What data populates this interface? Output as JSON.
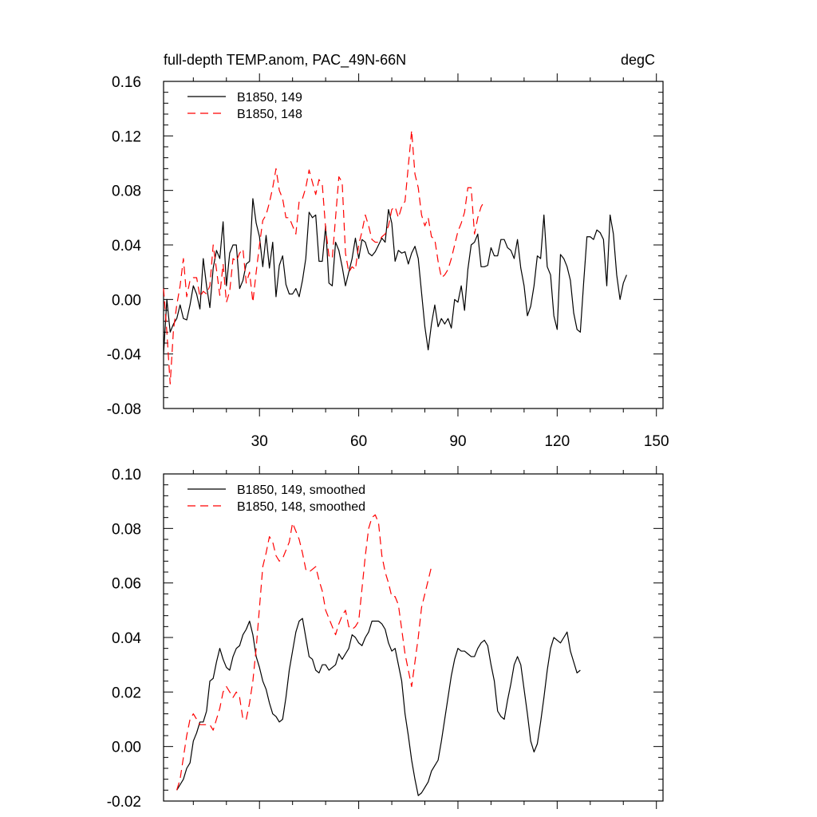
{
  "chart_data": [
    {
      "type": "line",
      "title_left": "full-depth TEMP.anom, PAC_49N-66N",
      "title_right": "degC",
      "xlabel": "",
      "ylabel": "",
      "xlim": [
        1,
        152
      ],
      "ylim": [
        -0.08,
        0.16
      ],
      "xticks": [
        30,
        60,
        90,
        120,
        150
      ],
      "yticks": [
        -0.08,
        -0.04,
        0.0,
        0.04,
        0.08,
        0.12,
        0.16
      ],
      "ytick_labels": [
        "-0.08",
        "-0.04",
        "0.00",
        "0.04",
        "0.08",
        "0.12",
        "0.16"
      ],
      "show_xtick_labels": true,
      "legend": "top-left",
      "series": [
        {
          "name": "B1850, 149",
          "color": "#000000",
          "dash": "solid",
          "x_start": 1,
          "values": [
            -0.04,
            0.0,
            -0.024,
            -0.018,
            -0.014,
            -0.004,
            -0.014,
            -0.015,
            -0.004,
            0.01,
            0.004,
            -0.007,
            0.03,
            0.01,
            -0.006,
            0.023,
            0.036,
            0.03,
            0.057,
            0.01,
            0.034,
            0.04,
            0.04,
            0.008,
            0.014,
            0.026,
            0.028,
            0.074,
            0.056,
            0.046,
            0.024,
            0.047,
            0.023,
            0.042,
            0.002,
            0.025,
            0.032,
            0.011,
            0.004,
            0.004,
            0.008,
            0.002,
            0.014,
            0.03,
            0.064,
            0.06,
            0.062,
            0.028,
            0.028,
            0.054,
            0.012,
            0.01,
            0.042,
            0.036,
            0.024,
            0.01,
            0.02,
            0.03,
            0.045,
            0.03,
            0.044,
            0.042,
            0.034,
            0.032,
            0.035,
            0.04,
            0.045,
            0.042,
            0.066,
            0.056,
            0.028,
            0.036,
            0.034,
            0.035,
            0.026,
            0.034,
            0.039,
            0.03,
            0.005,
            -0.02,
            -0.037,
            -0.018,
            -0.004,
            -0.02,
            -0.014,
            -0.018,
            -0.014,
            -0.021,
            0.0,
            -0.002,
            0.01,
            -0.008,
            0.022,
            0.04,
            0.042,
            0.048,
            0.024,
            0.024,
            0.025,
            0.038,
            0.032,
            0.032,
            0.044,
            0.044,
            0.038,
            0.036,
            0.03,
            0.044,
            0.023,
            0.01,
            -0.012,
            -0.005,
            0.01,
            0.032,
            0.03,
            0.062,
            0.024,
            0.018,
            -0.012,
            -0.022,
            0.033,
            0.03,
            0.024,
            0.014,
            -0.01,
            -0.022,
            -0.024,
            0.012,
            0.046,
            0.046,
            0.044,
            0.051,
            0.049,
            0.044,
            0.01,
            0.062,
            0.048,
            0.018,
            0.0,
            0.012,
            0.018
          ]
        },
        {
          "name": "B1850, 148",
          "color": "#ff0000",
          "dash": "10,6",
          "x_start": 1,
          "values": [
            0.008,
            -0.024,
            -0.062,
            -0.022,
            -0.004,
            0.01,
            0.03,
            0.002,
            0.014,
            0.016,
            0.016,
            0.002,
            0.006,
            0.004,
            0.01,
            0.04,
            0.022,
            0.003,
            0.026,
            -0.002,
            0.006,
            0.03,
            0.028,
            0.034,
            0.037,
            0.012,
            0.02,
            -0.002,
            0.02,
            0.04,
            0.058,
            0.062,
            0.071,
            0.082,
            0.096,
            0.08,
            0.074,
            0.06,
            0.06,
            0.054,
            0.048,
            0.072,
            0.074,
            0.082,
            0.095,
            0.086,
            0.077,
            0.088,
            0.084,
            0.052,
            0.032,
            0.03,
            0.06,
            0.09,
            0.086,
            0.034,
            0.02,
            0.024,
            0.022,
            0.04,
            0.05,
            0.062,
            0.054,
            0.044,
            0.042,
            0.042,
            0.046,
            0.048,
            0.054,
            0.066,
            0.068,
            0.06,
            0.068,
            0.072,
            0.098,
            0.124,
            0.092,
            0.082,
            0.062,
            0.054,
            0.06,
            0.046,
            0.044,
            0.028,
            0.016,
            0.018,
            0.022,
            0.03,
            0.04,
            0.05,
            0.056,
            0.064,
            0.082,
            0.082,
            0.048,
            0.06,
            0.068,
            0.072
          ]
        }
      ]
    },
    {
      "type": "line",
      "title_left": "",
      "title_right": "",
      "xlabel": "",
      "ylabel": "",
      "xlim": [
        1,
        152
      ],
      "ylim": [
        -0.02,
        0.1
      ],
      "xticks": [
        30,
        60,
        90,
        120,
        150
      ],
      "yticks": [
        -0.02,
        0.0,
        0.02,
        0.04,
        0.06,
        0.08,
        0.1
      ],
      "ytick_labels": [
        "-0.02",
        "0.00",
        "0.02",
        "0.04",
        "0.06",
        "0.08",
        "0.10"
      ],
      "show_xtick_labels": false,
      "legend": "top-left",
      "series": [
        {
          "name": "B1850, 149, smoothed",
          "color": "#000000",
          "dash": "solid",
          "x_start": 5,
          "values": [
            -0.016,
            -0.014,
            -0.012,
            -0.008,
            -0.006,
            0.002,
            0.005,
            0.009,
            0.009,
            0.013,
            0.024,
            0.025,
            0.031,
            0.036,
            0.032,
            0.029,
            0.028,
            0.033,
            0.036,
            0.037,
            0.041,
            0.043,
            0.046,
            0.041,
            0.033,
            0.029,
            0.024,
            0.021,
            0.016,
            0.012,
            0.011,
            0.009,
            0.01,
            0.018,
            0.028,
            0.035,
            0.042,
            0.046,
            0.047,
            0.04,
            0.033,
            0.032,
            0.028,
            0.027,
            0.03,
            0.03,
            0.028,
            0.029,
            0.03,
            0.034,
            0.032,
            0.034,
            0.036,
            0.041,
            0.04,
            0.038,
            0.037,
            0.04,
            0.042,
            0.046,
            0.046,
            0.046,
            0.045,
            0.043,
            0.038,
            0.035,
            0.036,
            0.03,
            0.024,
            0.012,
            0.004,
            -0.005,
            -0.012,
            -0.018,
            -0.017,
            -0.015,
            -0.013,
            -0.009,
            -0.007,
            -0.005,
            0.002,
            0.01,
            0.018,
            0.026,
            0.032,
            0.036,
            0.035,
            0.035,
            0.034,
            0.033,
            0.033,
            0.036,
            0.038,
            0.039,
            0.037,
            0.03,
            0.024,
            0.013,
            0.011,
            0.01,
            0.017,
            0.023,
            0.03,
            0.033,
            0.03,
            0.021,
            0.012,
            0.002,
            -0.002,
            0.001,
            0.009,
            0.018,
            0.028,
            0.036,
            0.04,
            0.039,
            0.038,
            0.04,
            0.042,
            0.035,
            0.031,
            0.027,
            0.028
          ]
        },
        {
          "name": "B1850, 148, smoothed",
          "color": "#ff0000",
          "dash": "10,6",
          "x_start": 5,
          "values": [
            -0.016,
            -0.012,
            -0.004,
            0.004,
            0.01,
            0.012,
            0.01,
            0.008,
            0.008,
            0.008,
            0.008,
            0.006,
            0.01,
            0.014,
            0.02,
            0.022,
            0.02,
            0.018,
            0.02,
            0.018,
            0.01,
            0.01,
            0.016,
            0.024,
            0.036,
            0.051,
            0.066,
            0.071,
            0.077,
            0.075,
            0.07,
            0.068,
            0.069,
            0.072,
            0.075,
            0.082,
            0.079,
            0.076,
            0.071,
            0.065,
            0.064,
            0.065,
            0.066,
            0.061,
            0.057,
            0.05,
            0.047,
            0.044,
            0.041,
            0.045,
            0.048,
            0.05,
            0.044,
            0.043,
            0.044,
            0.046,
            0.058,
            0.07,
            0.08,
            0.084,
            0.085,
            0.082,
            0.07,
            0.064,
            0.06,
            0.055,
            0.055,
            0.052,
            0.043,
            0.034,
            0.028,
            0.022,
            0.031,
            0.04,
            0.051,
            0.056,
            0.061,
            0.066
          ]
        }
      ]
    }
  ]
}
